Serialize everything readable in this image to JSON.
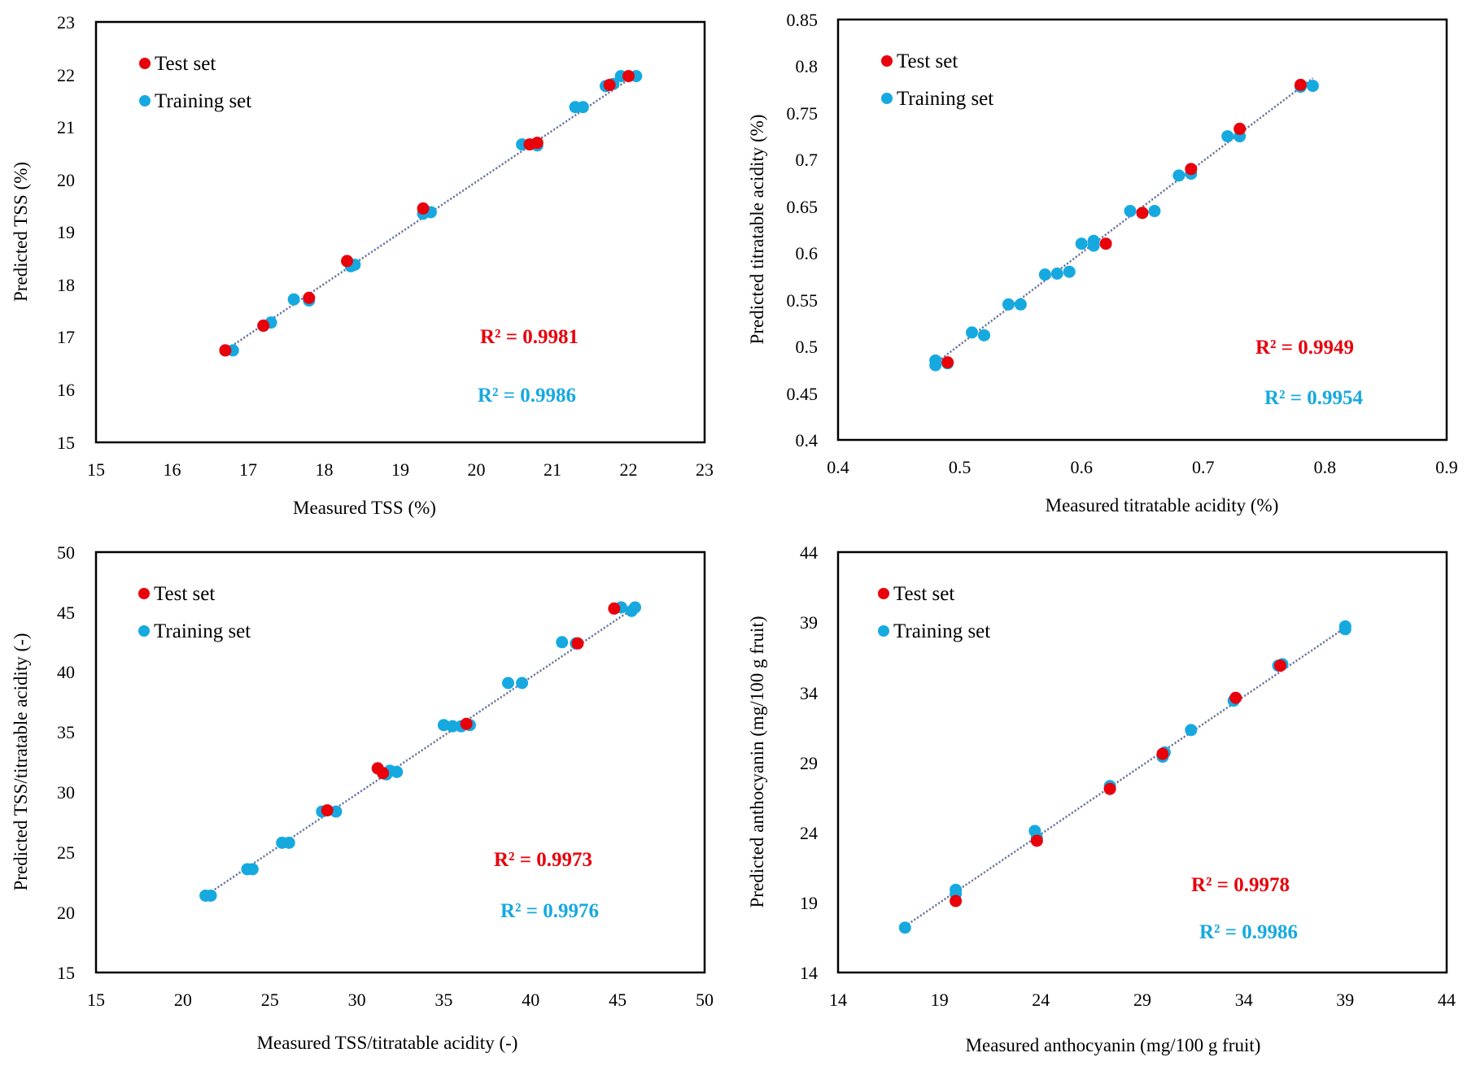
{
  "colors": {
    "test": "#e8000b",
    "train": "#16a9e0",
    "test_trend": "#e8783c",
    "train_trend": "#3d7fd0"
  },
  "chart_data": [
    {
      "type": "scatter",
      "xlabel": "Measured TSS (%)",
      "ylabel": "Predicted TSS (%)",
      "xlim": [
        15,
        23
      ],
      "ylim": [
        15,
        23
      ],
      "xticks": [
        "15",
        "16",
        "17",
        "18",
        "19",
        "20",
        "21",
        "22",
        "23"
      ],
      "yticks": [
        "15",
        "16",
        "17",
        "18",
        "19",
        "20",
        "21",
        "22",
        "23"
      ],
      "legend": [
        "Test set",
        "Training set"
      ],
      "r2_test": "R² = 0.9981",
      "r2_train": "R² = 0.9986",
      "trend": [
        [
          16.7,
          16.75
        ],
        [
          22.1,
          22.0
        ]
      ],
      "series": [
        {
          "name": "Training set",
          "points": [
            [
              16.7,
              16.75
            ],
            [
              16.8,
              16.75
            ],
            [
              17.2,
              17.22
            ],
            [
              17.3,
              17.28
            ],
            [
              17.6,
              17.72
            ],
            [
              17.8,
              17.7
            ],
            [
              18.35,
              18.35
            ],
            [
              18.4,
              18.38
            ],
            [
              19.3,
              19.35
            ],
            [
              19.4,
              19.38
            ],
            [
              20.6,
              20.67
            ],
            [
              20.8,
              20.65
            ],
            [
              21.3,
              21.38
            ],
            [
              21.4,
              21.38
            ],
            [
              21.7,
              21.78
            ],
            [
              21.8,
              21.82
            ],
            [
              21.9,
              21.97
            ],
            [
              22.1,
              21.97
            ]
          ]
        },
        {
          "name": "Test set",
          "points": [
            [
              16.7,
              16.75
            ],
            [
              17.2,
              17.22
            ],
            [
              17.8,
              17.75
            ],
            [
              18.3,
              18.45
            ],
            [
              19.3,
              19.45
            ],
            [
              20.7,
              20.67
            ],
            [
              20.8,
              20.7
            ],
            [
              21.75,
              21.8
            ],
            [
              22.0,
              21.97
            ]
          ]
        }
      ]
    },
    {
      "type": "scatter",
      "xlabel": "Measured titratable acidity (%)",
      "ylabel": "Predicted titratable acidity (%)",
      "xlim": [
        0.4,
        0.9
      ],
      "ylim": [
        0.4,
        0.85
      ],
      "xticks": [
        "0.4",
        "0.5",
        "0.6",
        "0.7",
        "0.8",
        "0.9"
      ],
      "yticks": [
        "0.4",
        "0.45",
        "0.5",
        "0.55",
        "0.6",
        "0.65",
        "0.7",
        "0.75",
        "0.8",
        "0.85"
      ],
      "legend": [
        "Test set",
        "Training set"
      ],
      "r2_test": "R² = 0.9949",
      "r2_train": "R² = 0.9954",
      "trend": [
        [
          0.48,
          0.482
        ],
        [
          0.79,
          0.787
        ]
      ],
      "series": [
        {
          "name": "Training set",
          "points": [
            [
              0.48,
              0.48
            ],
            [
              0.48,
              0.485
            ],
            [
              0.49,
              0.482
            ],
            [
              0.51,
              0.515
            ],
            [
              0.52,
              0.512
            ],
            [
              0.54,
              0.545
            ],
            [
              0.55,
              0.545
            ],
            [
              0.57,
              0.577
            ],
            [
              0.58,
              0.578
            ],
            [
              0.59,
              0.58
            ],
            [
              0.6,
              0.61
            ],
            [
              0.61,
              0.608
            ],
            [
              0.61,
              0.613
            ],
            [
              0.64,
              0.645
            ],
            [
              0.66,
              0.645
            ],
            [
              0.68,
              0.683
            ],
            [
              0.69,
              0.685
            ],
            [
              0.72,
              0.725
            ],
            [
              0.73,
              0.725
            ],
            [
              0.78,
              0.778
            ],
            [
              0.79,
              0.779
            ]
          ]
        },
        {
          "name": "Test set",
          "points": [
            [
              0.49,
              0.483
            ],
            [
              0.62,
              0.61
            ],
            [
              0.65,
              0.643
            ],
            [
              0.69,
              0.69
            ],
            [
              0.73,
              0.733
            ],
            [
              0.78,
              0.78
            ]
          ]
        }
      ]
    },
    {
      "type": "scatter",
      "xlabel": "Measured TSS/titratable acidity (-)",
      "ylabel": "Predicted TSS/titratable acidity (-)",
      "xlim": [
        15,
        50
      ],
      "ylim": [
        15,
        50
      ],
      "xticks": [
        "15",
        "20",
        "25",
        "30",
        "35",
        "40",
        "45",
        "50"
      ],
      "yticks": [
        "15",
        "20",
        "25",
        "30",
        "35",
        "40",
        "45",
        "50"
      ],
      "legend": [
        "Test set",
        "Training set"
      ],
      "r2_test": "R² = 0.9973",
      "r2_train": "R² = 0.9976",
      "trend": [
        [
          21.3,
          21.4
        ],
        [
          46.0,
          45.4
        ]
      ],
      "series": [
        {
          "name": "Training set",
          "points": [
            [
              21.3,
              21.4
            ],
            [
              21.6,
              21.4
            ],
            [
              23.7,
              23.6
            ],
            [
              24.0,
              23.6
            ],
            [
              25.7,
              25.8
            ],
            [
              26.1,
              25.8
            ],
            [
              28.0,
              28.4
            ],
            [
              28.8,
              28.4
            ],
            [
              31.7,
              31.5
            ],
            [
              31.9,
              31.8
            ],
            [
              32.3,
              31.7
            ],
            [
              35.0,
              35.6
            ],
            [
              35.5,
              35.5
            ],
            [
              36.0,
              35.5
            ],
            [
              36.5,
              35.6
            ],
            [
              38.7,
              39.1
            ],
            [
              39.5,
              39.1
            ],
            [
              41.8,
              42.5
            ],
            [
              42.6,
              42.4
            ],
            [
              45.2,
              45.4
            ],
            [
              45.8,
              45.1
            ],
            [
              46.0,
              45.4
            ]
          ]
        },
        {
          "name": "Test set",
          "points": [
            [
              28.3,
              28.5
            ],
            [
              31.2,
              32.0
            ],
            [
              31.5,
              31.6
            ],
            [
              36.3,
              35.7
            ],
            [
              42.7,
              42.4
            ],
            [
              44.8,
              45.3
            ]
          ]
        }
      ]
    },
    {
      "type": "scatter",
      "xlabel": "Measured anthocyanin (mg/100 g fruit)",
      "ylabel": "Predicted anthocyanin (mg/100 g fruit)",
      "xlim": [
        14,
        44
      ],
      "ylim": [
        14,
        44
      ],
      "xticks": [
        "14",
        "19",
        "24",
        "29",
        "34",
        "39",
        "44"
      ],
      "yticks": [
        "14",
        "19",
        "24",
        "29",
        "34",
        "39",
        "44"
      ],
      "legend": [
        "Test set",
        "Training set"
      ],
      "r2_test": "R² = 0.9978",
      "r2_train": "R² = 0.9986",
      "trend": [
        [
          17.3,
          17.3
        ],
        [
          39.0,
          38.6
        ]
      ],
      "series": [
        {
          "name": "Training set",
          "points": [
            [
              17.3,
              17.2
            ],
            [
              19.8,
              19.9
            ],
            [
              19.8,
              19.6
            ],
            [
              23.7,
              24.1
            ],
            [
              23.8,
              23.6
            ],
            [
              27.4,
              27.3
            ],
            [
              30.1,
              29.7
            ],
            [
              30.0,
              29.4
            ],
            [
              31.4,
              31.3
            ],
            [
              33.5,
              33.4
            ],
            [
              35.7,
              35.9
            ],
            [
              35.9,
              36.0
            ],
            [
              39.0,
              38.5
            ],
            [
              39.0,
              38.7
            ]
          ]
        },
        {
          "name": "Test set",
          "points": [
            [
              19.8,
              19.1
            ],
            [
              23.8,
              23.4
            ],
            [
              27.4,
              27.1
            ],
            [
              30.0,
              29.6
            ],
            [
              33.6,
              33.6
            ],
            [
              35.8,
              35.9
            ]
          ]
        }
      ]
    }
  ]
}
